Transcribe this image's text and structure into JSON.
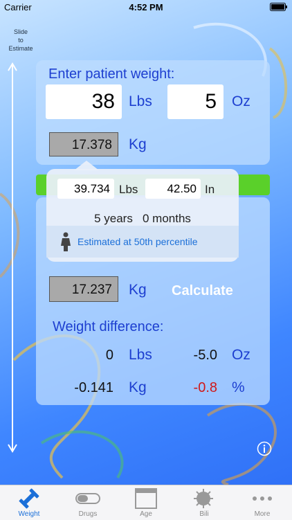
{
  "status_bar": {
    "carrier": "Carrier",
    "time": "4:52 PM"
  },
  "slider": {
    "label_lines": [
      "Slide",
      "to",
      "Estimate"
    ]
  },
  "weight_panel": {
    "title": "Enter patient weight:",
    "lbs_value": "38",
    "lbs_unit": "Lbs",
    "oz_value": "5",
    "oz_unit": "Oz",
    "kg_value": "17.378",
    "kg_unit": "Kg"
  },
  "estimate_popup": {
    "lbs_value": "39.734",
    "lbs_unit": "Lbs",
    "height_value": "42.50",
    "height_unit": "In",
    "age": "5 years   0 months",
    "button": "Estimated at 50th percentile"
  },
  "current_panel": {
    "kg_value": "17.237",
    "kg_unit": "Kg",
    "calculate": "Calculate",
    "difference_title": "Weight difference:",
    "diff_lbs": "0",
    "diff_lbs_unit": "Lbs",
    "diff_oz": "-5.0",
    "diff_oz_unit": "Oz",
    "diff_kg": "-0.141",
    "diff_kg_unit": "Kg",
    "diff_pct": "-0.8",
    "diff_pct_unit": "%"
  },
  "tab_bar": {
    "tabs": [
      "Weight",
      "Drugs",
      "Age",
      "Bili",
      "More"
    ]
  }
}
